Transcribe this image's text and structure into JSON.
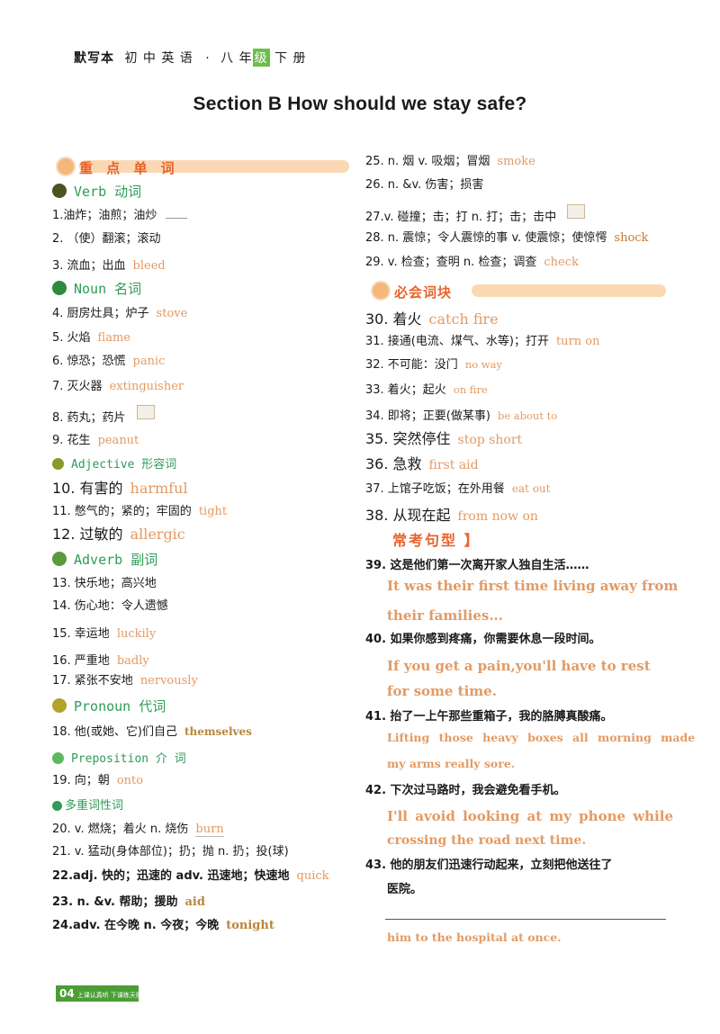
{
  "header": {
    "series": "默写本",
    "subject": "初 中 英 语",
    "sep": "·",
    "grade_a": "八 年",
    "grade_box": "级",
    "grade_b": "下 册"
  },
  "title": "Section B How should we stay safe?",
  "sections": {
    "key_words": "重 点 单 词",
    "chunks": "必会词块",
    "sentences": "常考句型 】"
  },
  "categories": {
    "verb": "Verb 动词",
    "noun": "Noun 名词",
    "adj": "Adjective 形容词",
    "adv": "Adverb 副词",
    "pron": "Pronoun 代词",
    "prep": "Preposition 介 词",
    "multi": "多重词性词"
  },
  "colors": {
    "accent": "#e8632a",
    "answer": "#e39a63",
    "green": "#2f9b57"
  },
  "left": [
    {
      "cn": "1.油炸；油煎；油炒",
      "en": ""
    },
    {
      "cn": "2. （使）翻滚；滚动",
      "en": ""
    },
    {
      "cn": "3. 流血；出血",
      "en": "bleed"
    },
    {
      "cn": "4. 厨房灶具；炉子",
      "en": "stove"
    },
    {
      "cn": "5. 火焰",
      "en": "flame"
    },
    {
      "cn": "6. 惊恐；恐慌",
      "en": "panic"
    },
    {
      "cn": "7. 灭火器",
      "en": "extinguisher"
    },
    {
      "cn": "8. 药丸；药片",
      "en": ""
    },
    {
      "cn": "9. 花生",
      "en": "peanut"
    },
    {
      "cn": "10. 有害的",
      "en": "harmful"
    },
    {
      "cn": "11. 憋气的；紧的；牢固的",
      "en": "tight"
    },
    {
      "cn": "12. 过敏的",
      "en": "allergic"
    },
    {
      "cn": "13. 快乐地；高兴地",
      "en": ""
    },
    {
      "cn": "14. 伤心地：令人遗憾",
      "en": ""
    },
    {
      "cn": "15. 幸运地",
      "en": "luckily"
    },
    {
      "cn": "16.  严重地",
      "en": "badly"
    },
    {
      "cn": "17. 紧张不安地",
      "en": "nervously"
    },
    {
      "cn": "18. 他(或她、它)们自己",
      "en": "themselves"
    },
    {
      "cn": "19. 向；朝",
      "en": "onto"
    },
    {
      "cn": "20. v. 燃烧；着火    n. 烧伤",
      "en": "burn"
    },
    {
      "cn": "21. v. 猛动(身体部位)；扔；抛   n. 扔；投(球)",
      "en": ""
    },
    {
      "cn": "22.adj. 快的；迅速的    adv. 迅速地；快速地",
      "en": "quick"
    },
    {
      "cn": "23. n. &v.   帮助；援助",
      "en": "aid"
    },
    {
      "cn": "24.adv. 在今晚    n. 今夜；今晚",
      "en": "tonight"
    }
  ],
  "right": [
    {
      "cn": "25. n. 烟     v. 吸烟；冒烟",
      "en": "smoke"
    },
    {
      "cn": "26. n. &v.   伤害；损害",
      "en": ""
    },
    {
      "cn": "27.v.   碰撞；击；打     n. 打；击；击中",
      "en": ""
    },
    {
      "cn": "28. n. 震惊；令人震惊的事    v. 使震惊；使惊愕",
      "en": "shock"
    },
    {
      "cn": "29. v. 检查；查明    n. 检查；调查",
      "en": "check"
    },
    {
      "cn": "30. 着火",
      "en": "catch fire"
    },
    {
      "cn": "31. 接通(电流、煤气、水等)；打开",
      "en": "turn    on"
    },
    {
      "cn": "32. 不可能：没门",
      "en": "no   way"
    },
    {
      "cn": "33. 着火；起火",
      "en": "on    fire"
    },
    {
      "cn": "34. 即将；正要(做某事)",
      "en": "be    about    to"
    },
    {
      "cn": "35. 突然停住",
      "en": "stop short"
    },
    {
      "cn": "36. 急救",
      "en": "first aid"
    },
    {
      "cn": "37. 上馆子吃饭；在外用餐",
      "en": "eat    out"
    },
    {
      "cn": "38. 从现在起",
      "en": "from now on"
    }
  ],
  "sentences": [
    {
      "cn": "39. 这是他们第一次离开家人独自生活……",
      "en1": "It was their first time living away from",
      "en2": "their families..."
    },
    {
      "cn": "40. 如果你感到疼痛，你需要休息一段时间。",
      "en1": "If you get a pain,you'll have to rest",
      "en2": "for some time."
    },
    {
      "cn": "41. 抬了一上午那些重箱子，我的胳膊真酸痛。",
      "en1": "Lifting those heavy boxes all morning made",
      "en2": "my   arms   really   sore."
    },
    {
      "cn": "42. 下次过马路时，我会避免看手机。",
      "en1": "I'll avoid looking at my phone while",
      "en2": "crossing the road next time."
    },
    {
      "cn": "43. 他的朋友们迅速行动起来，立刻把他送往了",
      "cn2": "医院。",
      "en2": "him  to  the  hospital  at  once."
    }
  ],
  "footer": {
    "page": "04",
    "note": "上课认真听 下课练天赋"
  }
}
